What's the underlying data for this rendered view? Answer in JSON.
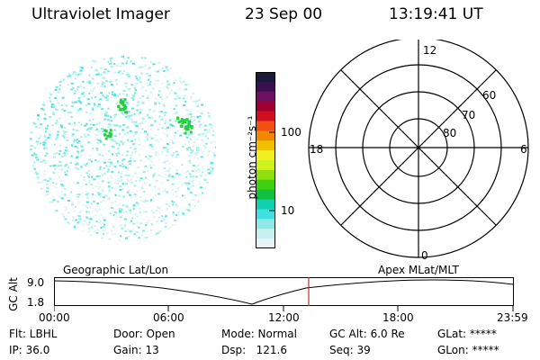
{
  "header": {
    "instrument": "Ultraviolet Imager",
    "date": "23 Sep 00",
    "time": "13:19:41 UT"
  },
  "colorbar": {
    "label": "photon cm⁻²s⁻¹",
    "ticks": [
      "100",
      "10"
    ],
    "colors": [
      "#1a1a3a",
      "#3a1050",
      "#701060",
      "#a00030",
      "#d01020",
      "#f05010",
      "#f08800",
      "#f0c000",
      "#f0f020",
      "#d0f020",
      "#90e010",
      "#40d010",
      "#10c040",
      "#10d0b0",
      "#40e0e0",
      "#90e8e8",
      "#c8f0f0",
      "#e8f4f4"
    ]
  },
  "imager": {
    "speckle_colors": [
      "#40e0e0",
      "#90e8e8",
      "#c8f0f0",
      "#d8f0f0"
    ],
    "hotspot_color": "#20d040"
  },
  "polar": {
    "mlt_labels": {
      "top": "12",
      "bottom": "0",
      "left": "18",
      "right": "6"
    },
    "lat_labels": [
      "60",
      "70",
      "80"
    ]
  },
  "timeline": {
    "left_label": "Geographic Lat/Lon",
    "right_label": "Apex MLat/MLT",
    "y_axis_label": "GC Alt",
    "y_ticks": [
      "9.0",
      "1.8"
    ],
    "x_ticks": [
      "00:00",
      "06:00",
      "12:00",
      "18:00",
      "23:59"
    ],
    "marker_color": "#c03030"
  },
  "info": {
    "row1": [
      "Flt: LBHL",
      "Door: Open",
      "Mode: Normal",
      "GC Alt: 6.0 Re",
      "GLat: *****"
    ],
    "row2": [
      "IP: 36.0",
      "Gain: 13",
      "Dsp:   121.6",
      "Seq: 39",
      "GLon: *****"
    ]
  }
}
